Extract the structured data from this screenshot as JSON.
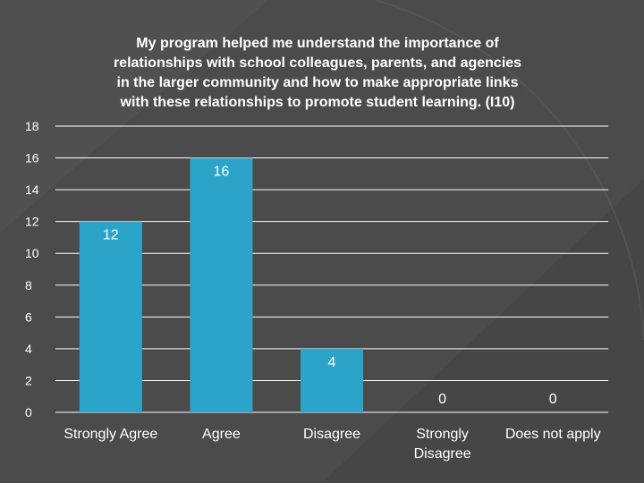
{
  "chart_data": {
    "type": "bar",
    "title": "My program helped me understand the importance of relationships with school colleagues, parents, and agencies in the larger community and how to make appropriate links with these relationships to promote student learning. (I10)",
    "title_lines": [
      "My program helped me understand the importance of",
      "relationships with school colleagues, parents, and agencies",
      "in the larger community and how to make appropriate links",
      "with these relationships to promote student learning. (I10)"
    ],
    "categories": [
      [
        "Strongly Agree"
      ],
      [
        "Agree"
      ],
      [
        "Disagree"
      ],
      [
        "Strongly",
        "Disagree"
      ],
      [
        "Does not apply"
      ]
    ],
    "values": [
      12,
      16,
      4,
      0,
      0
    ],
    "data_labels": [
      "12",
      "16",
      "4",
      "0",
      "0"
    ],
    "yticks": [
      "0",
      "2",
      "4",
      "6",
      "8",
      "10",
      "12",
      "14",
      "16",
      "18"
    ],
    "ylim": [
      0,
      18
    ],
    "grid": true,
    "xlabel": "",
    "ylabel": "",
    "colors": {
      "bar": "#2ca4c9",
      "grid": "#ffffff",
      "background": "#4a4a4a",
      "text": "#ffffff"
    }
  }
}
